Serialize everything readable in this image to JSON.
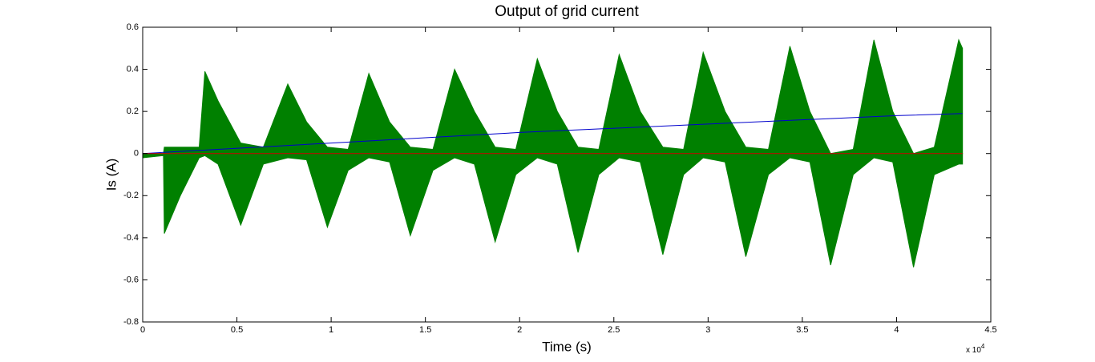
{
  "chart_data": {
    "type": "line",
    "title": "Output of grid current",
    "xlabel": "Time (s)",
    "ylabel": "Is (A)",
    "x_multiplier": {
      "base": "x 10",
      "exponent": "4"
    },
    "xlim": [
      0,
      4.5
    ],
    "xticks": [
      0,
      0.5,
      1,
      1.5,
      2,
      2.5,
      3,
      3.5,
      4,
      4.5
    ],
    "ylim": [
      -0.8,
      0.6
    ],
    "yticks": [
      -0.8,
      -0.6,
      -0.4,
      -0.2,
      0,
      0.2,
      0.4,
      0.6
    ],
    "grid": false,
    "box": true,
    "series": [
      {
        "color": "#008000",
        "fill": true,
        "x": [
          0,
          0.11,
          0.115,
          0.2,
          0.3,
          0.33,
          0.4,
          0.52,
          0.64,
          0.77,
          0.87,
          0.98,
          1.09,
          1.2,
          1.31,
          1.42,
          1.54,
          1.655,
          1.76,
          1.87,
          1.98,
          2.094,
          2.2,
          2.31,
          2.42,
          2.528,
          2.64,
          2.76,
          2.87,
          2.974,
          3.09,
          3.2,
          3.32,
          3.434,
          3.54,
          3.65,
          3.77,
          3.88,
          3.98,
          4.09,
          4.2,
          4.33,
          4.35
        ],
        "values": [
          -0.01,
          0.0,
          0.03,
          0.03,
          0.03,
          0.39,
          0.25,
          0.05,
          0.03,
          0.33,
          0.15,
          0.03,
          0.02,
          0.38,
          0.15,
          0.03,
          0.02,
          0.4,
          0.2,
          0.03,
          0.02,
          0.45,
          0.2,
          0.03,
          0.02,
          0.47,
          0.2,
          0.03,
          0.02,
          0.48,
          0.2,
          0.03,
          0.02,
          0.51,
          0.2,
          0.0,
          0.02,
          0.54,
          0.2,
          0.0,
          0.03,
          0.54,
          0.5
        ]
      },
      {
        "color": "#008000",
        "fill": true,
        "x": [
          0,
          0.11,
          0.115,
          0.2,
          0.3,
          0.33,
          0.4,
          0.52,
          0.64,
          0.77,
          0.87,
          0.98,
          1.09,
          1.2,
          1.31,
          1.42,
          1.54,
          1.655,
          1.76,
          1.87,
          1.98,
          2.094,
          2.2,
          2.31,
          2.42,
          2.528,
          2.64,
          2.76,
          2.87,
          2.974,
          3.09,
          3.2,
          3.32,
          3.434,
          3.54,
          3.65,
          3.77,
          3.88,
          3.98,
          4.09,
          4.2,
          4.33,
          4.35
        ],
        "values": [
          -0.02,
          -0.01,
          -0.38,
          -0.2,
          -0.02,
          -0.01,
          -0.05,
          -0.34,
          -0.05,
          -0.02,
          -0.03,
          -0.35,
          -0.08,
          -0.02,
          -0.04,
          -0.39,
          -0.08,
          -0.02,
          -0.05,
          -0.42,
          -0.1,
          -0.02,
          -0.05,
          -0.47,
          -0.1,
          -0.02,
          -0.04,
          -0.48,
          -0.1,
          -0.02,
          -0.04,
          -0.49,
          -0.1,
          -0.02,
          -0.04,
          -0.53,
          -0.1,
          -0.02,
          -0.04,
          -0.54,
          -0.1,
          -0.05,
          -0.05
        ]
      },
      {
        "color": "#0000cc",
        "fill": false,
        "x": [
          0,
          1,
          2,
          3,
          4,
          4.35
        ],
        "values": [
          0,
          0.05,
          0.1,
          0.14,
          0.18,
          0.19
        ]
      },
      {
        "color": "#cc0000",
        "fill": false,
        "x": [
          0,
          4.35
        ],
        "values": [
          0,
          0
        ]
      }
    ]
  }
}
